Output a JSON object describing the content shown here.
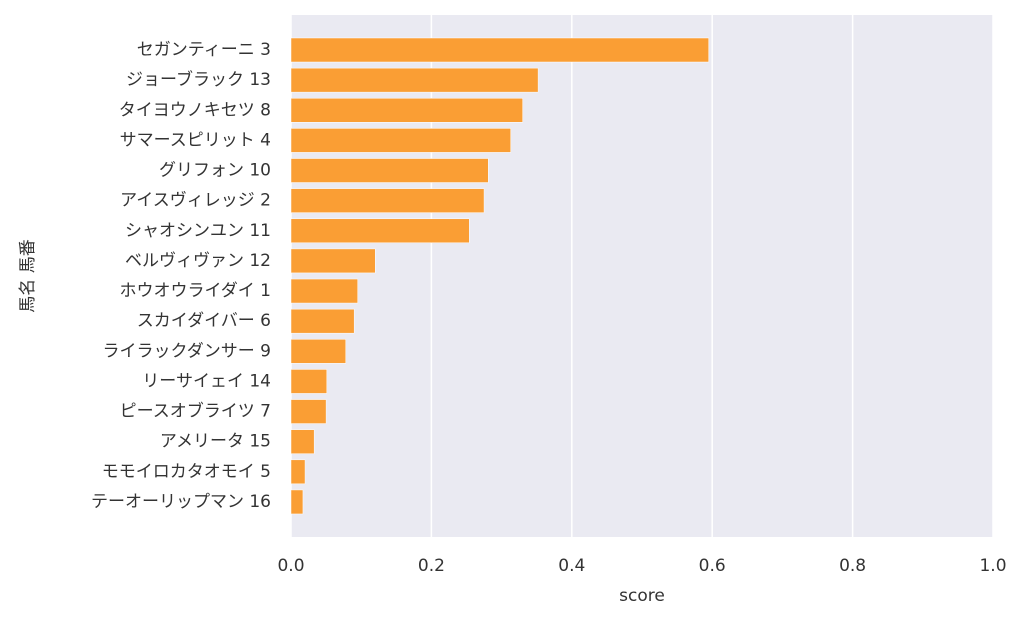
{
  "chart_data": {
    "type": "barh",
    "xlabel": "score",
    "ylabel": "馬名 馬番",
    "categories": [
      "セガンティーニ 3",
      "ジョーブラック 13",
      "タイヨウノキセツ 8",
      "サマースピリット 4",
      "グリフォン 10",
      "アイスヴィレッジ 2",
      "シャオシンユン 11",
      "ベルヴィヴァン 12",
      "ホウオウライダイ 1",
      "スカイダイバー 6",
      "ライラックダンサー 9",
      "リーサイェイ 14",
      "ピースオブライツ 7",
      "アメリータ 15",
      "モモイロカタオモイ 5",
      "テーオーリップマン 16"
    ],
    "values": [
      0.595,
      0.352,
      0.33,
      0.313,
      0.281,
      0.275,
      0.254,
      0.12,
      0.095,
      0.09,
      0.078,
      0.051,
      0.05,
      0.033,
      0.02,
      0.017
    ],
    "color": "#fa9e34",
    "xlim": [
      0,
      1
    ],
    "xticks": [
      {
        "value": 0,
        "label": "0.0"
      },
      {
        "value": 0.2,
        "label": "0.2"
      },
      {
        "value": 0.4,
        "label": "0.4"
      },
      {
        "value": 0.6,
        "label": "0.6"
      },
      {
        "value": 0.8,
        "label": "0.8"
      },
      {
        "value": 1,
        "label": "1.0"
      }
    ],
    "grid": true
  }
}
